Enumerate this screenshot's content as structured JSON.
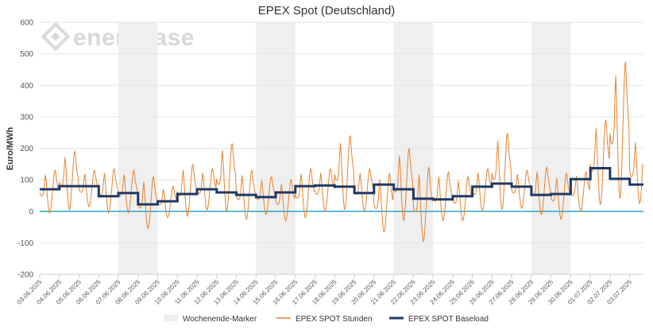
{
  "chart_data": {
    "type": "line",
    "title": "EPEX Spot (Deutschland)",
    "ylabel": "Euro/MWh",
    "xlabel": "",
    "ylim": [
      -200,
      600
    ],
    "yticks": [
      -200,
      -100,
      0,
      100,
      200,
      300,
      400,
      500,
      600
    ],
    "grid": true,
    "legend_position": "bottom",
    "watermark": "enerchase",
    "x": [
      "03.06.2025",
      "04.06.2025",
      "05.06.2025",
      "06.06.2025",
      "07.06.2025",
      "08.06.2025",
      "09.06.2025",
      "10.06.2025",
      "11.06.2025",
      "12.06.2025",
      "13.06.2025",
      "14.06.2025",
      "15.06.2025",
      "16.06.2025",
      "17.06.2025",
      "18.06.2025",
      "19.06.2025",
      "20.06.2025",
      "21.06.2025",
      "22.06.2025",
      "23.06.2025",
      "24.06.2025",
      "25.06.2025",
      "26.06.2025",
      "27.06.2025",
      "28.06.2025",
      "29.06.2025",
      "30.06.2025",
      "01.07.2025",
      "02.07.2025",
      "03.07.2025"
    ],
    "weekend_spans": [
      [
        "07.06.2025",
        "09.06.2025"
      ],
      [
        "14.06.2025",
        "16.06.2025"
      ],
      [
        "21.06.2025",
        "23.06.2025"
      ],
      [
        "28.06.2025",
        "30.06.2025"
      ]
    ],
    "series": [
      {
        "name": "Wochenende-Marker",
        "kind": "band",
        "color": "#efefef"
      },
      {
        "name": "EPEX SPOT Stunden",
        "kind": "hourly-line",
        "color": "#e8822d",
        "daily_profile": {
          "03.06.2025": {
            "min": -5,
            "max": 130
          },
          "04.06.2025": {
            "min": 5,
            "max": 190
          },
          "05.06.2025": {
            "min": 15,
            "max": 130
          },
          "06.06.2025": {
            "min": -5,
            "max": 135
          },
          "07.06.2025": {
            "min": -5,
            "max": 130
          },
          "08.06.2025": {
            "min": -55,
            "max": 110
          },
          "09.06.2025": {
            "min": -20,
            "max": 80
          },
          "10.06.2025": {
            "min": -15,
            "max": 148
          },
          "11.06.2025": {
            "min": 5,
            "max": 135
          },
          "12.06.2025": {
            "min": 0,
            "max": 215
          },
          "13.06.2025": {
            "min": -25,
            "max": 130
          },
          "14.06.2025": {
            "min": -10,
            "max": 110
          },
          "15.06.2025": {
            "min": -30,
            "max": 100
          },
          "16.06.2025": {
            "min": -20,
            "max": 135
          },
          "17.06.2025": {
            "min": 0,
            "max": 135
          },
          "18.06.2025": {
            "min": 5,
            "max": 240
          },
          "19.06.2025": {
            "min": 0,
            "max": 135
          },
          "20.06.2025": {
            "min": -65,
            "max": 120
          },
          "21.06.2025": {
            "min": -30,
            "max": 200
          },
          "22.06.2025": {
            "min": -95,
            "max": 140
          },
          "23.06.2025": {
            "min": -30,
            "max": 125
          },
          "24.06.2025": {
            "min": -30,
            "max": 110
          },
          "25.06.2025": {
            "min": 0,
            "max": 135
          },
          "26.06.2025": {
            "min": 5,
            "max": 248
          },
          "27.06.2025": {
            "min": 10,
            "max": 130
          },
          "28.06.2025": {
            "min": -10,
            "max": 140
          },
          "29.06.2025": {
            "min": -25,
            "max": 120
          },
          "30.06.2025": {
            "min": 0,
            "max": 125
          },
          "01.07.2025": {
            "min": 20,
            "max": 290
          },
          "02.07.2025": {
            "min": 40,
            "max": 475
          },
          "03.07.2025": {
            "min": 25,
            "max": 240
          }
        }
      },
      {
        "name": "EPEX SPOT Baseload",
        "kind": "step",
        "color": "#1f3864",
        "values": [
          70,
          80,
          80,
          48,
          58,
          22,
          32,
          55,
          70,
          60,
          52,
          45,
          60,
          80,
          82,
          78,
          58,
          85,
          70,
          40,
          38,
          48,
          78,
          88,
          78,
          52,
          55,
          102,
          137,
          103,
          85
        ]
      }
    ],
    "zero_line_color": "#2aa6c9"
  }
}
